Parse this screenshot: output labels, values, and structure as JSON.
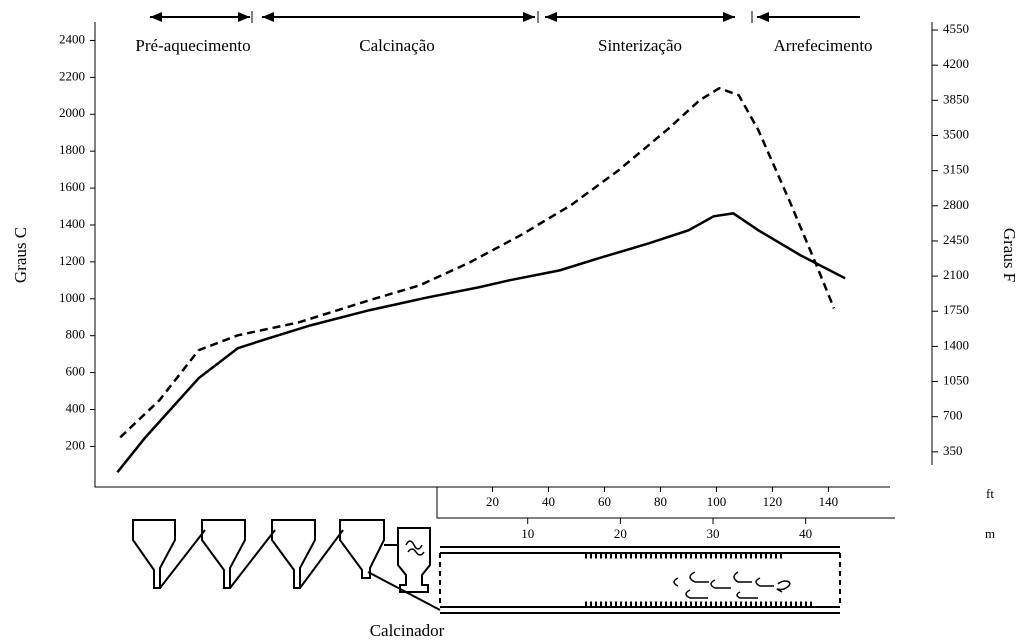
{
  "chart_data": {
    "type": "line",
    "phases": [
      "Pré-aquecimento",
      "Calcinação",
      "Sinterização",
      "Arrefecimento"
    ],
    "ylabel": "Graus C",
    "y2label": "Graus F",
    "xlabel": "ft",
    "x2label": "m",
    "equipment_label": "Calcinador",
    "xlim": [
      -122,
      162
    ],
    "xticks": [
      20,
      40,
      60,
      80,
      100,
      120,
      140
    ],
    "x2lim": [
      -36.7,
      49.1
    ],
    "x2ticks": [
      10,
      20,
      30,
      40
    ],
    "ylim": [
      -20,
      2500
    ],
    "yticks": [
      200,
      400,
      600,
      800,
      1000,
      1200,
      1400,
      1600,
      1800,
      2000,
      2200,
      2400
    ],
    "y2lim": [
      0,
      4630
    ],
    "y2ticks": [
      350,
      700,
      1050,
      1400,
      1750,
      2100,
      2450,
      2800,
      3150,
      3500,
      3850,
      4200,
      4550
    ],
    "series": [
      {
        "color": "#000000",
        "style": "solid",
        "x": [
          -114,
          -104,
          -85,
          -71,
          -60,
          -45,
          -24,
          -3,
          15,
          26,
          44,
          58,
          76,
          90,
          99,
          106,
          115,
          130,
          146
        ],
        "values": [
          60,
          249,
          569,
          732,
          786,
          856,
          938,
          1008,
          1062,
          1100,
          1154,
          1220,
          1301,
          1371,
          1447,
          1463,
          1371,
          1236,
          1111
        ]
      },
      {
        "color": "#000000",
        "style": "dashed",
        "x": [
          -113,
          -99,
          -85,
          -71,
          -49,
          -24,
          -6,
          12,
          30,
          48,
          65,
          83,
          94,
          101,
          108,
          115,
          126,
          135,
          142
        ],
        "values": [
          249,
          450,
          721,
          802,
          873,
          992,
          1073,
          1198,
          1344,
          1507,
          1696,
          1924,
          2076,
          2141,
          2103,
          1913,
          1534,
          1209,
          948
        ]
      }
    ]
  }
}
